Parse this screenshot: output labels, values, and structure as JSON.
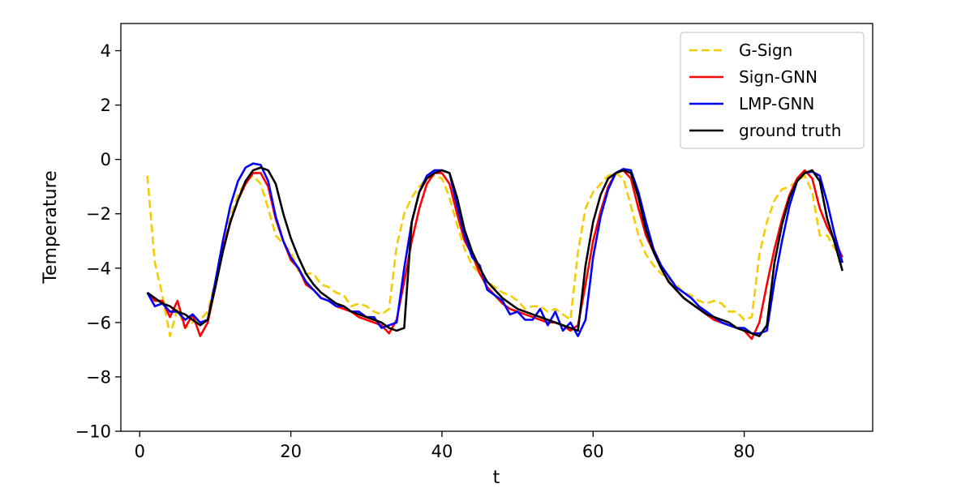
{
  "colors": {
    "g_sign": "#f5cc00",
    "sign_gnn": "#ff0000",
    "lmp_gnn": "#0000ff",
    "ground_truth": "#000000",
    "axes": "#000000",
    "legend_border": "#cccccc"
  },
  "chart_data": {
    "type": "line",
    "title": "",
    "xlabel": "t",
    "ylabel": "Temperature",
    "xlim": [
      -2.5,
      97
    ],
    "ylim": [
      -10,
      5
    ],
    "xticks": [
      0,
      20,
      40,
      60,
      80
    ],
    "yticks": [
      4,
      2,
      0,
      -2,
      -4,
      -6,
      -8,
      -10
    ],
    "xtick_labels": [
      "0",
      "20",
      "40",
      "60",
      "80"
    ],
    "ytick_labels": [
      "4",
      "2",
      "0",
      "−2",
      "−4",
      "−6",
      "−8",
      "−10"
    ],
    "grid": false,
    "legend_position": "top-right",
    "x_start": 1,
    "series": [
      {
        "name": "G-Sign",
        "key": "g_sign",
        "style": "dashed",
        "values": [
          -0.6,
          -3.8,
          -5.0,
          -6.5,
          -5.5,
          -6.2,
          -6.0,
          -5.9,
          -5.6,
          -4.5,
          -3.3,
          -2.1,
          -1.3,
          -0.8,
          -0.6,
          -0.9,
          -1.8,
          -2.8,
          -3.1,
          -3.4,
          -4.1,
          -4.2,
          -4.2,
          -4.6,
          -4.7,
          -4.9,
          -5.0,
          -5.4,
          -5.3,
          -5.4,
          -5.6,
          -5.7,
          -5.5,
          -3.2,
          -2.0,
          -1.4,
          -1.0,
          -0.7,
          -0.6,
          -0.7,
          -1.4,
          -2.4,
          -3.3,
          -3.9,
          -4.2,
          -4.5,
          -4.7,
          -4.9,
          -5.0,
          -5.2,
          -5.5,
          -5.4,
          -5.4,
          -5.6,
          -5.5,
          -5.7,
          -5.9,
          -3.4,
          -1.8,
          -1.2,
          -0.9,
          -0.6,
          -0.5,
          -0.7,
          -1.7,
          -2.8,
          -3.5,
          -3.9,
          -4.2,
          -4.4,
          -4.6,
          -4.9,
          -5.0,
          -5.2,
          -5.3,
          -5.2,
          -5.3,
          -5.6,
          -5.6,
          -5.9,
          -5.8,
          -3.5,
          -2.3,
          -1.5,
          -1.1,
          -1.0,
          -0.8,
          -0.6,
          -1.2,
          -2.8,
          -2.8,
          -3.3,
          -3.6
        ]
      },
      {
        "name": "Sign-GNN",
        "key": "sign_gnn",
        "style": "solid",
        "values": [
          -4.9,
          -5.2,
          -5.2,
          -5.8,
          -5.2,
          -6.2,
          -5.7,
          -6.5,
          -6.0,
          -4.7,
          -3.3,
          -2.3,
          -1.5,
          -0.9,
          -0.5,
          -0.5,
          -1.0,
          -2.2,
          -3.0,
          -3.7,
          -4.0,
          -4.6,
          -4.8,
          -5.1,
          -5.2,
          -5.4,
          -5.5,
          -5.6,
          -5.8,
          -5.9,
          -6.0,
          -6.1,
          -6.4,
          -5.9,
          -4.5,
          -3.0,
          -1.8,
          -0.9,
          -0.5,
          -0.5,
          -0.9,
          -2.0,
          -3.0,
          -3.5,
          -4.2,
          -4.7,
          -5.0,
          -5.3,
          -5.5,
          -5.6,
          -5.7,
          -5.8,
          -5.9,
          -6.0,
          -6.0,
          -6.1,
          -6.3,
          -6.1,
          -4.6,
          -3.0,
          -1.9,
          -1.0,
          -0.5,
          -0.4,
          -0.7,
          -1.8,
          -2.8,
          -3.4,
          -4.0,
          -4.5,
          -4.8,
          -5.1,
          -5.3,
          -5.5,
          -5.7,
          -5.9,
          -6.0,
          -6.1,
          -6.2,
          -6.3,
          -6.6,
          -6.0,
          -4.6,
          -3.3,
          -2.2,
          -1.3,
          -0.7,
          -0.4,
          -0.7,
          -1.8,
          -2.5,
          -3.0,
          -3.6
        ]
      },
      {
        "name": "LMP-GNN",
        "key": "lmp_gnn",
        "style": "solid",
        "values": [
          -4.9,
          -5.4,
          -5.3,
          -5.6,
          -5.6,
          -5.9,
          -5.7,
          -6.0,
          -5.9,
          -4.5,
          -3.0,
          -1.7,
          -0.8,
          -0.3,
          -0.15,
          -0.2,
          -0.8,
          -2.1,
          -3.0,
          -3.6,
          -4.0,
          -4.5,
          -4.8,
          -5.1,
          -5.2,
          -5.4,
          -5.4,
          -5.6,
          -5.6,
          -5.8,
          -5.8,
          -6.2,
          -6.1,
          -6.0,
          -4.0,
          -2.3,
          -1.2,
          -0.6,
          -0.4,
          -0.4,
          -0.5,
          -1.7,
          -2.8,
          -3.6,
          -3.9,
          -4.8,
          -5.0,
          -5.2,
          -5.7,
          -5.6,
          -5.9,
          -5.9,
          -5.5,
          -6.1,
          -5.6,
          -6.3,
          -6.0,
          -6.5,
          -5.9,
          -3.6,
          -2.1,
          -1.1,
          -0.5,
          -0.35,
          -0.4,
          -1.2,
          -2.3,
          -3.3,
          -3.9,
          -4.3,
          -4.7,
          -4.9,
          -5.1,
          -5.4,
          -5.6,
          -5.8,
          -6.0,
          -6.1,
          -6.2,
          -6.2,
          -6.4,
          -6.4,
          -6.3,
          -4.5,
          -3.0,
          -1.7,
          -0.8,
          -0.5,
          -0.45,
          -0.6,
          -1.6,
          -2.8,
          -3.8
        ]
      },
      {
        "name": "ground truth",
        "key": "ground_truth",
        "style": "solid",
        "values": [
          -4.9,
          -5.1,
          -5.3,
          -5.4,
          -5.6,
          -5.7,
          -5.9,
          -6.1,
          -5.9,
          -4.7,
          -3.4,
          -2.3,
          -1.5,
          -0.8,
          -0.4,
          -0.3,
          -0.4,
          -0.9,
          -2.0,
          -2.9,
          -3.6,
          -4.2,
          -4.6,
          -4.9,
          -5.1,
          -5.3,
          -5.4,
          -5.6,
          -5.7,
          -5.8,
          -5.9,
          -6.0,
          -6.2,
          -6.3,
          -6.2,
          -2.3,
          -1.2,
          -0.7,
          -0.5,
          -0.4,
          -0.5,
          -1.4,
          -2.6,
          -3.4,
          -4.0,
          -4.5,
          -4.8,
          -5.1,
          -5.3,
          -5.5,
          -5.6,
          -5.7,
          -5.8,
          -5.9,
          -6.0,
          -6.1,
          -6.2,
          -6.3,
          -3.9,
          -2.3,
          -1.3,
          -0.7,
          -0.5,
          -0.4,
          -0.5,
          -1.4,
          -2.6,
          -3.4,
          -4.0,
          -4.5,
          -4.8,
          -5.1,
          -5.3,
          -5.5,
          -5.7,
          -5.8,
          -5.9,
          -6.0,
          -6.2,
          -6.3,
          -6.4,
          -6.5,
          -6.1,
          -3.8,
          -2.4,
          -1.4,
          -0.8,
          -0.5,
          -0.4,
          -0.8,
          -2.2,
          -3.1,
          -4.1
        ]
      }
    ]
  }
}
